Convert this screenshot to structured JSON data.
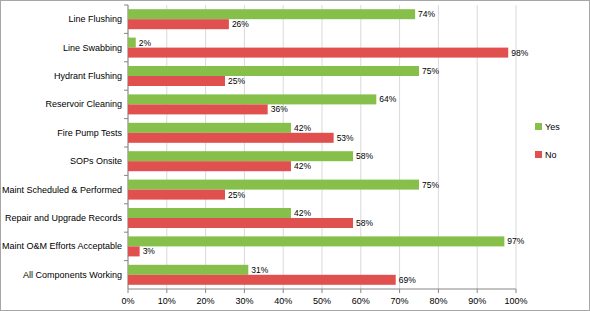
{
  "chart_data": {
    "type": "bar",
    "orientation": "horizontal",
    "categories": [
      "Line Flushing",
      "Line Swabbing",
      "Hydrant Flushing",
      "Reservoir Cleaning",
      "Fire Pump Tests",
      "SOPs Onsite",
      "Maint Scheduled & Performed",
      "Repair and Upgrade Records",
      "Maint O&M Efforts Acceptable",
      "All Components Working"
    ],
    "series": [
      {
        "name": "Yes",
        "color": "#86c04a",
        "values": [
          74,
          2,
          75,
          64,
          42,
          58,
          75,
          42,
          97,
          31
        ],
        "value_labels": [
          "74%",
          "2%",
          "75%",
          "64%",
          "42%",
          "58%",
          "75%",
          "42%",
          "97%",
          "31%"
        ]
      },
      {
        "name": "No",
        "color": "#e0504e",
        "values": [
          26,
          98,
          25,
          36,
          53,
          42,
          25,
          58,
          3,
          69
        ],
        "value_labels": [
          "26%",
          "98%",
          "25%",
          "36%",
          "53%",
          "42%",
          "25%",
          "58%",
          "3%",
          "69%"
        ]
      }
    ],
    "xlim": [
      0,
      100
    ],
    "xticks": [
      {
        "value": 0,
        "label": "0%"
      },
      {
        "value": 10,
        "label": "10%"
      },
      {
        "value": 20,
        "label": "20%"
      },
      {
        "value": 30,
        "label": "30%"
      },
      {
        "value": 40,
        "label": "40%"
      },
      {
        "value": 50,
        "label": "50%"
      },
      {
        "value": 60,
        "label": "60%"
      },
      {
        "value": 70,
        "label": "70%"
      },
      {
        "value": 80,
        "label": "80%"
      },
      {
        "value": 90,
        "label": "90%"
      },
      {
        "value": 100,
        "label": "100%"
      }
    ],
    "grid": true,
    "legend": "right",
    "data_labels": true
  }
}
